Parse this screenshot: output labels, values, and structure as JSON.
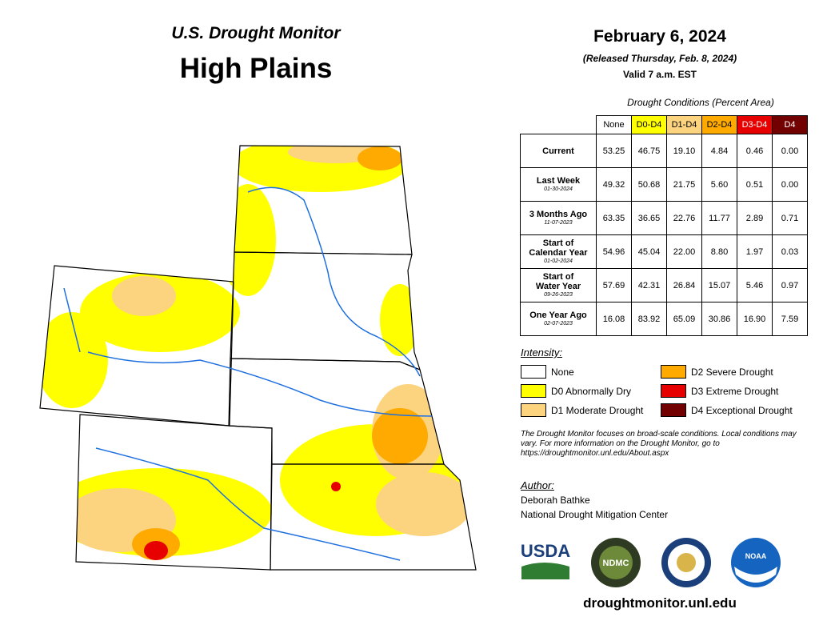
{
  "header": {
    "title": "U.S. Drought Monitor",
    "region": "High Plains"
  },
  "release": {
    "date": "February 6, 2024",
    "released": "(Released Thursday, Feb. 8, 2024)",
    "valid": "Valid 7 a.m. EST"
  },
  "table": {
    "caption": "Drought Conditions (Percent Area)",
    "columns": [
      "None",
      "D0-D4",
      "D1-D4",
      "D2-D4",
      "D3-D4",
      "D4"
    ],
    "rows": [
      {
        "label": "Current",
        "values": [
          "53.25",
          "46.75",
          "19.10",
          "4.84",
          "0.46",
          "0.00"
        ]
      },
      {
        "label": "Last Week",
        "date": "01-30-2024",
        "values": [
          "49.32",
          "50.68",
          "21.75",
          "5.60",
          "0.51",
          "0.00"
        ]
      },
      {
        "label": "3 Months Ago",
        "date": "11-07-2023",
        "values": [
          "63.35",
          "36.65",
          "22.76",
          "11.77",
          "2.89",
          "0.71"
        ]
      },
      {
        "label": "Start of\nCalendar Year",
        "date": "01-02-2024",
        "values": [
          "54.96",
          "45.04",
          "22.00",
          "8.80",
          "1.97",
          "0.03"
        ]
      },
      {
        "label": "Start of\nWater Year",
        "date": "09-26-2023",
        "values": [
          "57.69",
          "42.31",
          "26.84",
          "15.07",
          "5.46",
          "0.97"
        ]
      },
      {
        "label": "One Year Ago",
        "date": "02-07-2023",
        "values": [
          "16.08",
          "83.92",
          "65.09",
          "30.86",
          "16.90",
          "7.59"
        ]
      }
    ]
  },
  "legend": {
    "title": "Intensity:",
    "items": [
      {
        "label": "None",
        "color": "#ffffff"
      },
      {
        "label": "D0 Abnormally Dry",
        "color": "#ffff00"
      },
      {
        "label": "D1 Moderate Drought",
        "color": "#fcd37f"
      },
      {
        "label": "D2 Severe Drought",
        "color": "#ffaa00"
      },
      {
        "label": "D3 Extreme Drought",
        "color": "#e60000"
      },
      {
        "label": "D4 Exceptional Drought",
        "color": "#730000"
      }
    ]
  },
  "note": "The Drought Monitor focuses on broad-scale conditions. Local conditions may vary. For more information on the Drought Monitor, go to https://droughtmonitor.unl.edu/About.aspx",
  "author": {
    "title": "Author:",
    "name": "Deborah Bathke",
    "org": "National Drought Mitigation Center"
  },
  "logos": [
    "USDA",
    "NDMC",
    "NOAA"
  ],
  "url": "droughtmonitor.unl.edu"
}
